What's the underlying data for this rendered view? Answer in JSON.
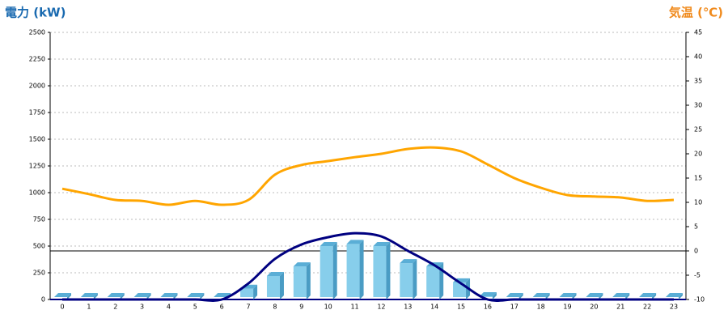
{
  "chart_data": {
    "type": "bar_line",
    "title": "電力 (kW)",
    "y2_title": "気温 (℃)",
    "categories": [
      "0",
      "1",
      "2",
      "3",
      "4",
      "5",
      "6",
      "7",
      "8",
      "9",
      "10",
      "11",
      "12",
      "13",
      "14",
      "15",
      "16",
      "17",
      "18",
      "19",
      "20",
      "21",
      "22",
      "23"
    ],
    "series": [
      {
        "type": "bar",
        "color": "#87ceeb",
        "values": [
          0,
          0,
          0,
          0,
          0,
          0,
          20,
          100,
          220,
          310,
          500,
          520,
          500,
          340,
          310,
          160,
          30,
          0,
          0,
          0,
          0,
          0,
          0,
          0
        ]
      },
      {
        "type": "line",
        "color": "#000080",
        "values": [
          0,
          0,
          0,
          0,
          0,
          0,
          0,
          150,
          380,
          515,
          583,
          620,
          590,
          455,
          320,
          150,
          0,
          0,
          0,
          0,
          0,
          0,
          0,
          0
        ]
      },
      {
        "type": "line",
        "axis": "y2",
        "color": "#ffa500",
        "values": [
          12.8,
          11.7,
          10.5,
          10.3,
          9.5,
          10.3,
          9.5,
          10.5,
          15.7,
          17.7,
          18.5,
          19.3,
          20,
          21,
          21.3,
          20.5,
          17.8,
          15,
          13,
          11.5,
          11.2,
          11,
          10.3,
          10.5
        ]
      }
    ],
    "ylim": [
      0,
      2500
    ],
    "yticks": [
      0,
      250,
      500,
      750,
      1000,
      1250,
      1500,
      1750,
      2000,
      2250,
      2500
    ],
    "y2lim": [
      -10,
      45
    ],
    "y2ticks": [
      -10,
      -5,
      0,
      5,
      10,
      15,
      20,
      25,
      30,
      35,
      40,
      45
    ],
    "grid": true,
    "y2_zero_line": true
  }
}
